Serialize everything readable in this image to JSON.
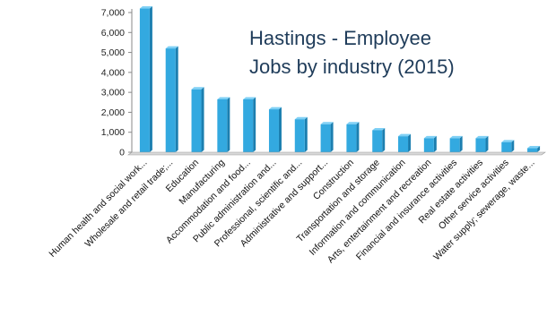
{
  "chart_data": {
    "type": "bar",
    "title_lines": [
      "Hastings - Employee",
      "Jobs by industry  (2015)"
    ],
    "xlabel": "",
    "ylabel": "",
    "ylim": [
      0,
      7000
    ],
    "yticks": [
      0,
      1000,
      2000,
      3000,
      4000,
      5000,
      6000,
      7000
    ],
    "ytick_labels": [
      "0",
      "1,000",
      "2,000",
      "3,000",
      "4,000",
      "5,000",
      "6,000",
      "7,000"
    ],
    "grid": false,
    "legend": "none",
    "categories": [
      "Human health and social work...",
      "Wholesale and retail trade;...",
      "Education",
      "Manufacturing",
      "Accommodation and food...",
      "Public administration and...",
      "Professional, scientific and...",
      "Administrative and support...",
      "Construction",
      "Transportation and storage",
      "Information and communication",
      "Arts, entertainment and recreation",
      "Financial and insurance activities",
      "Real estate activities",
      "Other service activities",
      "Water supply; sewerage, waste..."
    ],
    "values": [
      7200,
      5200,
      3150,
      2650,
      2650,
      2150,
      1650,
      1400,
      1400,
      1100,
      800,
      700,
      700,
      700,
      500,
      200
    ],
    "bar_color": "#33a9e0"
  }
}
